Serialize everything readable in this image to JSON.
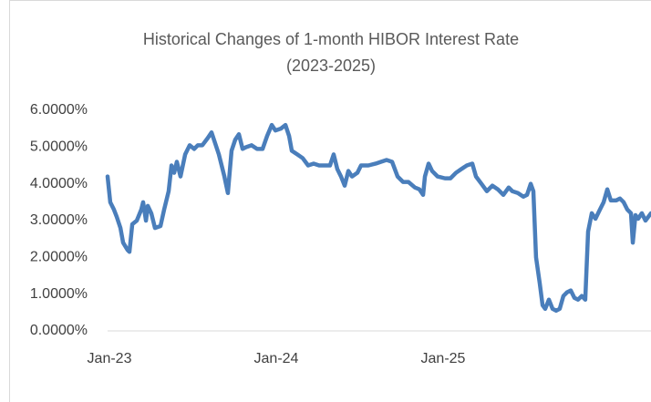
{
  "chart_data": {
    "type": "line",
    "title": "Historical Changes of 1-month HIBOR Interest Rate",
    "subtitle": "(2023-2025)",
    "color": "#4a7ebb",
    "x": [
      2022.989,
      2023.005,
      2023.027,
      2023.044,
      2023.066,
      2023.082,
      2023.109,
      2023.12,
      2023.137,
      2023.164,
      2023.191,
      2023.202,
      2023.219,
      2023.23,
      2023.251,
      2023.273,
      2023.306,
      2023.328,
      2023.355,
      2023.372,
      2023.388,
      2023.404,
      2023.426,
      2023.454,
      2023.481,
      2023.508,
      2023.53,
      2023.557,
      2023.59,
      2023.612,
      2023.634,
      2023.656,
      2023.689,
      2023.71,
      2023.732,
      2023.754,
      2023.776,
      2023.798,
      2023.82,
      2023.852,
      2023.885,
      2023.918,
      2023.945,
      2023.973,
      2023.995,
      2024.027,
      2024.055,
      2024.077,
      2024.093,
      2024.126,
      2024.158,
      2024.191,
      2024.224,
      2024.257,
      2024.29,
      2024.322,
      2024.344,
      2024.366,
      2024.388,
      2024.41,
      2024.432,
      2024.454,
      2024.486,
      2024.508,
      2024.552,
      2024.596,
      2024.628,
      2024.661,
      2024.694,
      2024.727,
      2024.76,
      2024.792,
      2024.831,
      2024.858,
      2024.88,
      2024.891,
      2024.913,
      2024.934,
      2024.967,
      2025.011,
      2025.044,
      2025.077,
      2025.109,
      2025.142,
      2025.175,
      2025.197,
      2025.23,
      2025.262,
      2025.295,
      2025.328,
      2025.361,
      2025.393,
      2025.415,
      2025.448,
      2025.481,
      2025.503,
      2025.525,
      2025.541,
      2025.557,
      2025.579,
      2025.596,
      2025.612,
      2025.634,
      2025.656,
      2025.678,
      2025.699,
      2025.721,
      2025.743,
      2025.765,
      2025.787,
      2025.809,
      2025.831,
      2025.852,
      2025.869,
      2025.891,
      2025.913,
      2025.94,
      2025.962,
      2025.984,
      2026.005,
      2026.038,
      2026.06,
      2026.082,
      2026.104,
      2026.126,
      2026.137,
      2026.153,
      2026.169,
      2026.191,
      2026.213,
      2026.246
    ],
    "values": [
      4.2,
      3.5,
      3.3,
      3.1,
      2.8,
      2.4,
      2.2,
      2.15,
      2.9,
      3.0,
      3.3,
      3.5,
      3.0,
      3.4,
      3.2,
      2.8,
      2.85,
      3.3,
      3.8,
      4.5,
      4.3,
      4.6,
      4.2,
      4.8,
      5.05,
      4.95,
      5.05,
      5.05,
      5.25,
      5.4,
      5.1,
      4.8,
      4.2,
      3.75,
      4.9,
      5.2,
      5.35,
      4.95,
      5.0,
      5.05,
      4.95,
      4.95,
      5.3,
      5.6,
      5.45,
      5.5,
      5.6,
      5.3,
      4.9,
      4.8,
      4.7,
      4.5,
      4.55,
      4.5,
      4.5,
      4.5,
      4.8,
      4.4,
      4.2,
      3.95,
      4.35,
      4.2,
      4.3,
      4.5,
      4.5,
      4.55,
      4.6,
      4.65,
      4.6,
      4.2,
      4.05,
      4.05,
      3.9,
      3.85,
      3.7,
      4.2,
      4.55,
      4.35,
      4.2,
      4.15,
      4.15,
      4.3,
      4.4,
      4.5,
      4.55,
      4.2,
      4.0,
      3.8,
      3.95,
      3.85,
      3.7,
      3.9,
      3.8,
      3.75,
      3.65,
      3.7,
      4.0,
      3.8,
      2.0,
      1.3,
      0.7,
      0.6,
      0.85,
      0.6,
      0.55,
      0.6,
      0.95,
      1.05,
      1.1,
      0.9,
      0.85,
      0.95,
      0.85,
      2.7,
      3.2,
      3.05,
      3.3,
      3.5,
      3.85,
      3.55,
      3.55,
      3.6,
      3.5,
      3.3,
      3.2,
      2.4,
      3.15,
      3.05,
      3.2,
      3.0,
      3.2
    ],
    "xlim": [
      2022.989,
      2026.246
    ],
    "xticks": [
      {
        "value": 2023,
        "label": "Jan-23"
      },
      {
        "value": 2024,
        "label": "Jan-24"
      },
      {
        "value": 2025,
        "label": "Jan-25"
      }
    ],
    "ylim": [
      0,
      6
    ],
    "yticks": [
      {
        "value": 0,
        "label": "0.0000%"
      },
      {
        "value": 1,
        "label": "1.0000%"
      },
      {
        "value": 2,
        "label": "2.0000%"
      },
      {
        "value": 3,
        "label": "3.0000%"
      },
      {
        "value": 4,
        "label": "4.0000%"
      },
      {
        "value": 5,
        "label": "5.0000%"
      },
      {
        "value": 6,
        "label": "6.0000%"
      }
    ]
  }
}
